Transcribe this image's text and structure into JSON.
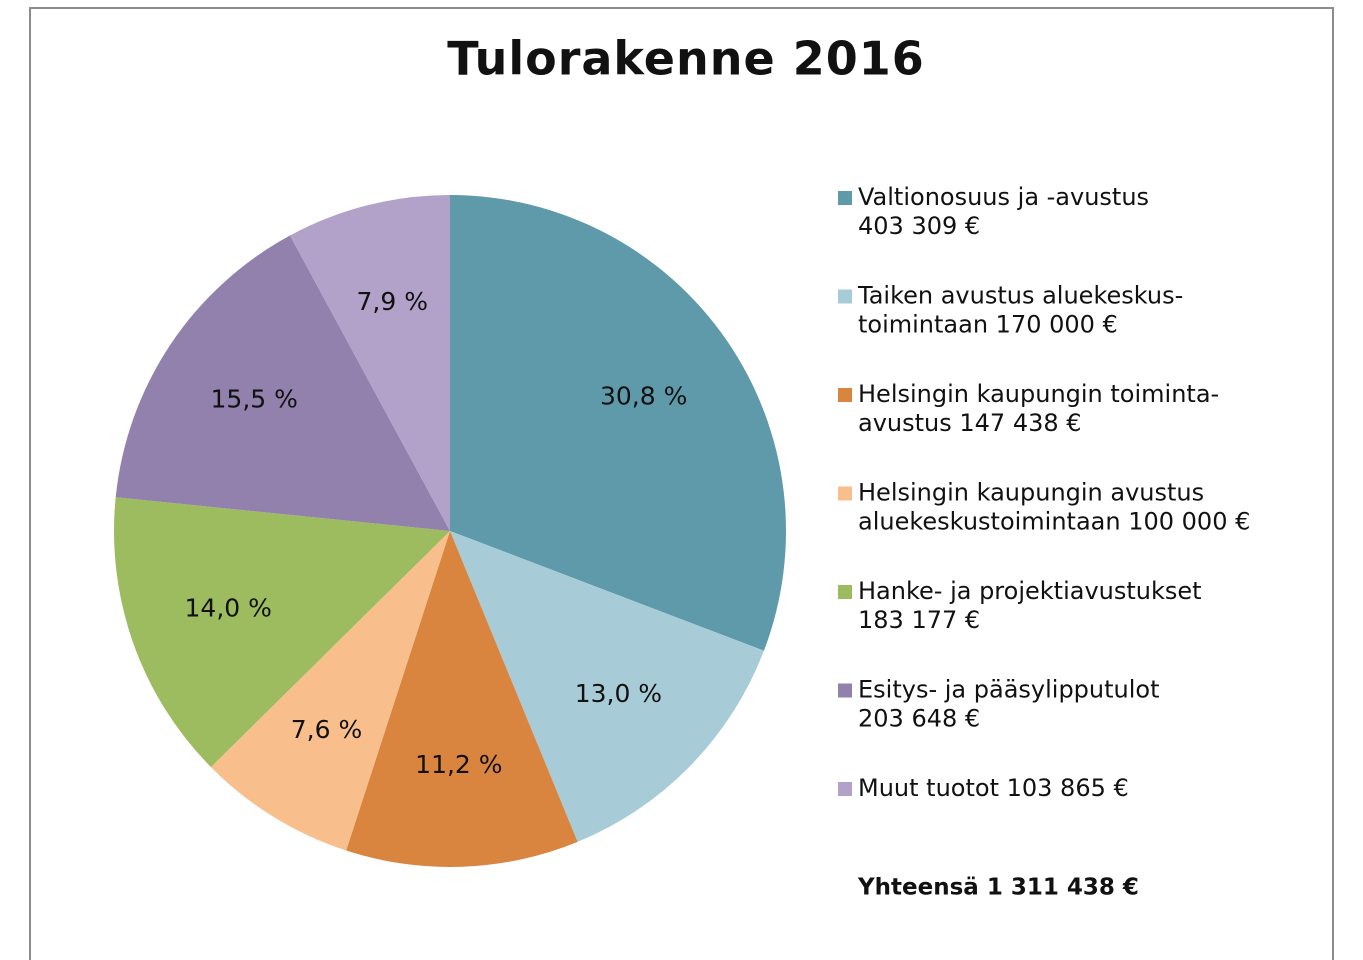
{
  "chart_data": {
    "type": "pie",
    "title": "Tulorakenne 2016",
    "categories": [
      [
        "Valtionosuus ja -avustus",
        "403 309 €"
      ],
      [
        "Taiken avustus aluekeskus-",
        "toimintaan 170 000 €"
      ],
      [
        "Helsingin kaupungin toiminta-",
        "avustus 147 438 €"
      ],
      [
        "Helsingin kaupungin avustus",
        "aluekeskustoimintaan 100 000 €"
      ],
      [
        "Hanke- ja projektiavustukset",
        "183 177 €"
      ],
      [
        "Esitys- ja pääsylipputulot",
        "203 648 €"
      ],
      [
        "Muut tuotot 103 865 €"
      ]
    ],
    "values": [
      30.8,
      13.0,
      11.2,
      7.6,
      14.0,
      15.5,
      7.9
    ],
    "value_labels": [
      "30,8 %",
      "13,0 %",
      "11,2 %",
      "7,6 %",
      "14,0 %",
      "15,5 %",
      "7,9 %"
    ],
    "colors": [
      "#5f9aab",
      "#a8ccd7",
      "#d9843f",
      "#f8bf8d",
      "#9dbb5f",
      "#9280ad",
      "#b2a1c9"
    ],
    "total": "Yhteensä 1 311 438 €"
  }
}
